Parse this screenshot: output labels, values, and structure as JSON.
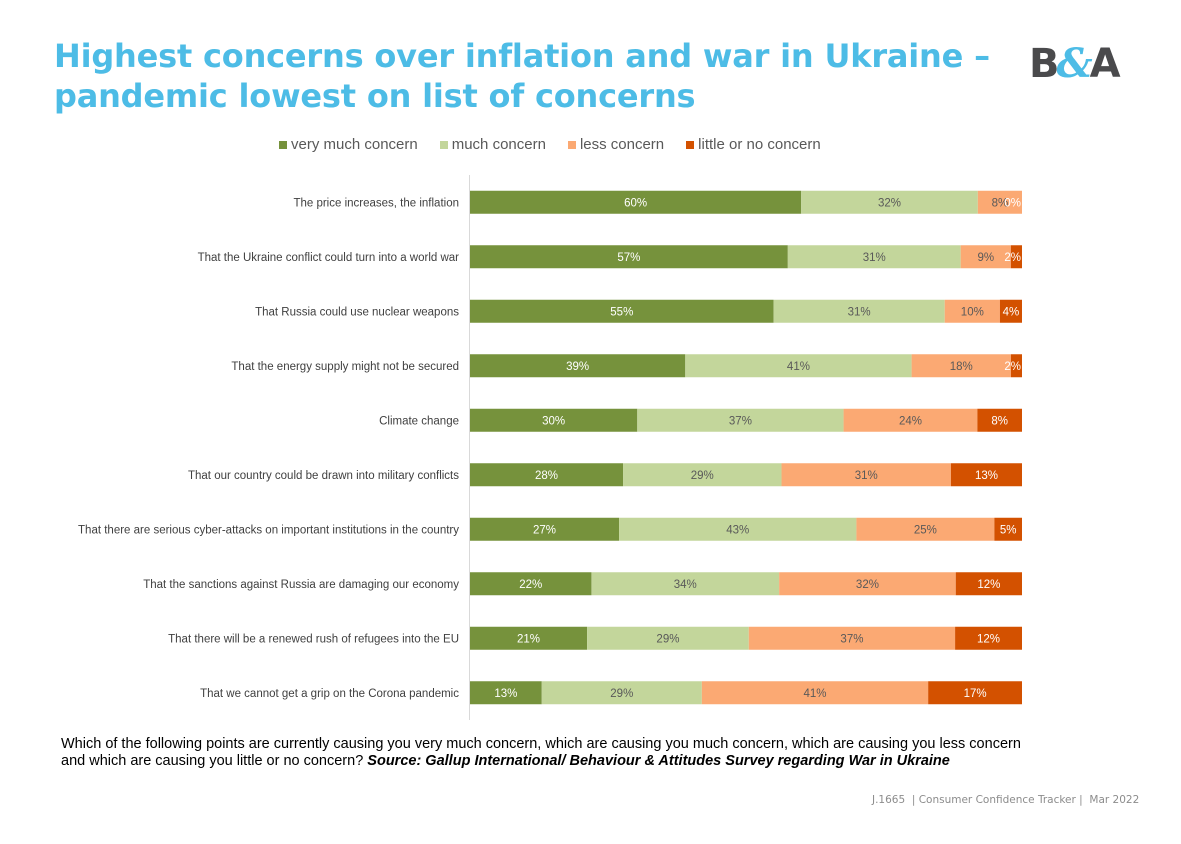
{
  "header": {
    "title_line1": "Highest concerns over inflation and war in Ukraine –",
    "title_line2": "pandemic lowest on list of concerns",
    "logo": {
      "left": "B",
      "amp": "&",
      "right": "A"
    }
  },
  "colors": {
    "title": "#4DBCE6",
    "very_much": "#76923C",
    "much": "#C3D69B",
    "less": "#FBA973",
    "little": "#D35100"
  },
  "chart_data": {
    "type": "bar",
    "orientation": "horizontal",
    "stacking": "percent",
    "title": "",
    "xlabel": "",
    "ylabel": "",
    "grid": false,
    "legend_position": "top",
    "categories": [
      "The price increases, the inflation",
      "That the Ukraine conflict could turn into a world war",
      "That Russia could use nuclear weapons",
      "That the energy supply might not be secured",
      "Climate change",
      "That our country could be drawn into military conflicts",
      "That there are serious cyber-attacks on important institutions in the country",
      "That the sanctions against Russia are damaging our economy",
      "That there will be a renewed rush of refugees into the EU",
      "That we cannot get a grip on the Corona pandemic"
    ],
    "series": [
      {
        "name": "very much concern",
        "color": "#76923C",
        "label_color": "#ffffff",
        "values": [
          60,
          57,
          55,
          39,
          30,
          28,
          27,
          22,
          21,
          13
        ]
      },
      {
        "name": "much concern",
        "color": "#C3D69B",
        "label_color": "#595959",
        "values": [
          32,
          31,
          31,
          41,
          37,
          29,
          43,
          34,
          29,
          29
        ]
      },
      {
        "name": "less concern",
        "color": "#FBA973",
        "label_color": "#595959",
        "values": [
          8,
          9,
          10,
          18,
          24,
          31,
          25,
          32,
          37,
          41
        ]
      },
      {
        "name": "little or no concern",
        "color": "#D35100",
        "label_color": "#ffffff",
        "values": [
          0,
          2,
          4,
          2,
          8,
          13,
          5,
          12,
          12,
          17
        ]
      }
    ],
    "value_suffix": "%"
  },
  "question": {
    "text": "Which of the following points are currently causing you very much concern, which are causing you much concern, which are causing you less concern and which are causing you little or no concern? ",
    "source": "Source: Gallup International/ Behaviour & Attitudes Survey regarding War in Ukraine"
  },
  "footer": {
    "text": "J.1665  | Consumer Confidence Tracker |  Mar 2022"
  }
}
